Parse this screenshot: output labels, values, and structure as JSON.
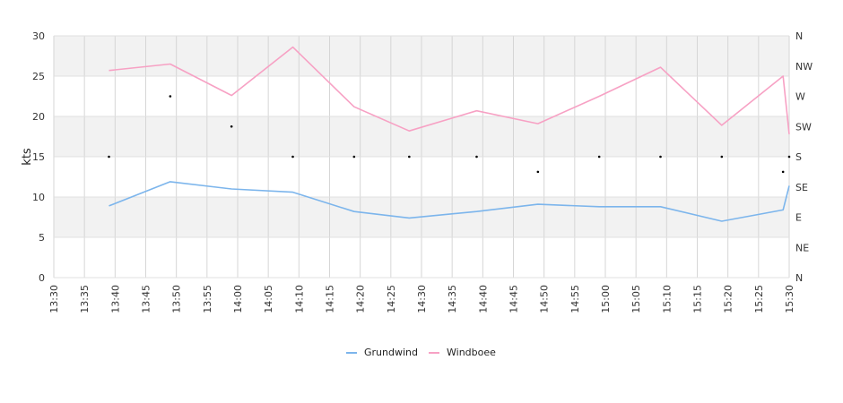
{
  "chart_data": {
    "type": "line",
    "title": "",
    "xlabel": "",
    "ylabel": "kts",
    "ylim": [
      0,
      30
    ],
    "y_ticks": [
      "0",
      "5",
      "10",
      "15",
      "20",
      "25",
      "30"
    ],
    "x_range": [
      "13:30",
      "15:30"
    ],
    "x_ticks": [
      "13:30",
      "13:35",
      "13:40",
      "13:45",
      "13:50",
      "13:55",
      "14:00",
      "14:05",
      "14:10",
      "14:15",
      "14:20",
      "14:25",
      "14:30",
      "14:35",
      "14:40",
      "14:45",
      "14:50",
      "14:55",
      "15:00",
      "15:05",
      "15:10",
      "15:15",
      "15:20",
      "15:25",
      "15:30"
    ],
    "right_axis_ticks": [
      "N",
      "NE",
      "E",
      "SE",
      "S",
      "SW",
      "W",
      "NW",
      "N"
    ],
    "grid": true,
    "legend_position": "bottom",
    "series": [
      {
        "name": "Grundwind",
        "color": "#7cb5ec",
        "x": [
          "13:39",
          "13:49",
          "13:59",
          "14:09",
          "14:19",
          "14:28",
          "14:39",
          "14:49",
          "14:59",
          "15:09",
          "15:19",
          "15:29",
          "15:30"
        ],
        "values": [
          8.9,
          11.9,
          11.0,
          10.6,
          8.2,
          7.4,
          8.2,
          9.1,
          8.8,
          8.8,
          7.0,
          8.4,
          11.4
        ]
      },
      {
        "name": "Windboee",
        "color": "#f7a1c4",
        "x": [
          "13:39",
          "13:49",
          "13:59",
          "14:09",
          "14:19",
          "14:28",
          "14:39",
          "14:49",
          "14:59",
          "15:09",
          "15:19",
          "15:29",
          "15:30"
        ],
        "values": [
          25.7,
          26.5,
          22.6,
          28.6,
          21.2,
          18.2,
          20.7,
          19.1,
          22.5,
          26.1,
          18.9,
          25.0,
          17.8
        ]
      }
    ],
    "direction_points": {
      "x": [
        "13:39",
        "13:49",
        "13:59",
        "14:09",
        "14:19",
        "14:28",
        "14:39",
        "14:49",
        "14:59",
        "15:09",
        "15:19",
        "15:29",
        "15:30"
      ],
      "values": [
        "S",
        "W",
        "SW",
        "S",
        "S",
        "S",
        "S",
        "SSE",
        "S",
        "S",
        "S",
        "SSE",
        "S"
      ]
    }
  }
}
